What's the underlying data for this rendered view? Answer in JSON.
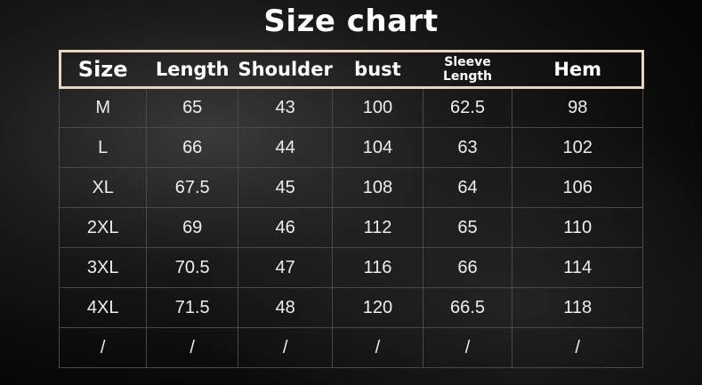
{
  "title": "Size chart",
  "columns": [
    "Size",
    "Length",
    "Shoulder",
    "bust",
    "Sleeve Length",
    "Hem"
  ],
  "rows": [
    [
      "M",
      "65",
      "43",
      "100",
      "62.5",
      "98"
    ],
    [
      "L",
      "66",
      "44",
      "104",
      "63",
      "102"
    ],
    [
      "XL",
      "67.5",
      "45",
      "108",
      "64",
      "106"
    ],
    [
      "2XL",
      "69",
      "46",
      "112",
      "65",
      "110"
    ],
    [
      "3XL",
      "70.5",
      "47",
      "116",
      "66",
      "114"
    ],
    [
      "4XL",
      "71.5",
      "48",
      "120",
      "66.5",
      "118"
    ],
    [
      "/",
      "/",
      "/",
      "/",
      "/",
      "/"
    ]
  ],
  "colors": {
    "header_border": "#e6d6bd",
    "text": "#ffffff",
    "background": "#050505"
  }
}
